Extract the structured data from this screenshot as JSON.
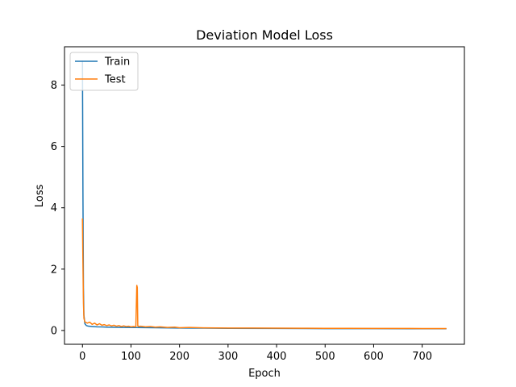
{
  "chart_data": {
    "type": "line",
    "title": "Deviation Model Loss",
    "xlabel": "Epoch",
    "ylabel": "Loss",
    "xlim": [
      -37,
      787
    ],
    "ylim": [
      -0.45,
      9.25
    ],
    "xticks": [
      0,
      100,
      200,
      300,
      400,
      500,
      600,
      700
    ],
    "yticks": [
      0,
      2,
      4,
      6,
      8
    ],
    "grid": false,
    "legend": "upper-left",
    "series": [
      {
        "name": "Train",
        "color": "#1f77b4",
        "points": [
          [
            0,
            8.8
          ],
          [
            1,
            4.5
          ],
          [
            2,
            1.4
          ],
          [
            3,
            0.5
          ],
          [
            5,
            0.22
          ],
          [
            8,
            0.16
          ],
          [
            12,
            0.14
          ],
          [
            20,
            0.13
          ],
          [
            30,
            0.12
          ],
          [
            50,
            0.11
          ],
          [
            80,
            0.1
          ],
          [
            110,
            0.095
          ],
          [
            150,
            0.09
          ],
          [
            200,
            0.08
          ],
          [
            300,
            0.07
          ],
          [
            400,
            0.065
          ],
          [
            500,
            0.06
          ],
          [
            600,
            0.058
          ],
          [
            700,
            0.056
          ],
          [
            750,
            0.055
          ]
        ]
      },
      {
        "name": "Test",
        "color": "#ff7f0e",
        "points": [
          [
            0,
            3.65
          ],
          [
            1,
            2.2
          ],
          [
            2,
            0.9
          ],
          [
            3,
            0.4
          ],
          [
            5,
            0.28
          ],
          [
            10,
            0.24
          ],
          [
            15,
            0.27
          ],
          [
            20,
            0.2
          ],
          [
            25,
            0.24
          ],
          [
            30,
            0.18
          ],
          [
            35,
            0.22
          ],
          [
            40,
            0.17
          ],
          [
            45,
            0.19
          ],
          [
            50,
            0.16
          ],
          [
            55,
            0.18
          ],
          [
            60,
            0.15
          ],
          [
            65,
            0.17
          ],
          [
            70,
            0.14
          ],
          [
            75,
            0.16
          ],
          [
            80,
            0.13
          ],
          [
            85,
            0.15
          ],
          [
            90,
            0.13
          ],
          [
            95,
            0.14
          ],
          [
            100,
            0.12
          ],
          [
            105,
            0.13
          ],
          [
            110,
            0.12
          ],
          [
            112,
            1.47
          ],
          [
            113,
            1.4
          ],
          [
            114,
            0.15
          ],
          [
            116,
            0.13
          ],
          [
            120,
            0.14
          ],
          [
            130,
            0.12
          ],
          [
            140,
            0.13
          ],
          [
            150,
            0.11
          ],
          [
            160,
            0.12
          ],
          [
            175,
            0.1
          ],
          [
            190,
            0.11
          ],
          [
            200,
            0.09
          ],
          [
            220,
            0.1
          ],
          [
            250,
            0.085
          ],
          [
            300,
            0.08
          ],
          [
            350,
            0.078
          ],
          [
            400,
            0.075
          ],
          [
            450,
            0.073
          ],
          [
            500,
            0.07
          ],
          [
            550,
            0.068
          ],
          [
            600,
            0.066
          ],
          [
            650,
            0.065
          ],
          [
            700,
            0.064
          ],
          [
            750,
            0.063
          ]
        ]
      }
    ]
  }
}
